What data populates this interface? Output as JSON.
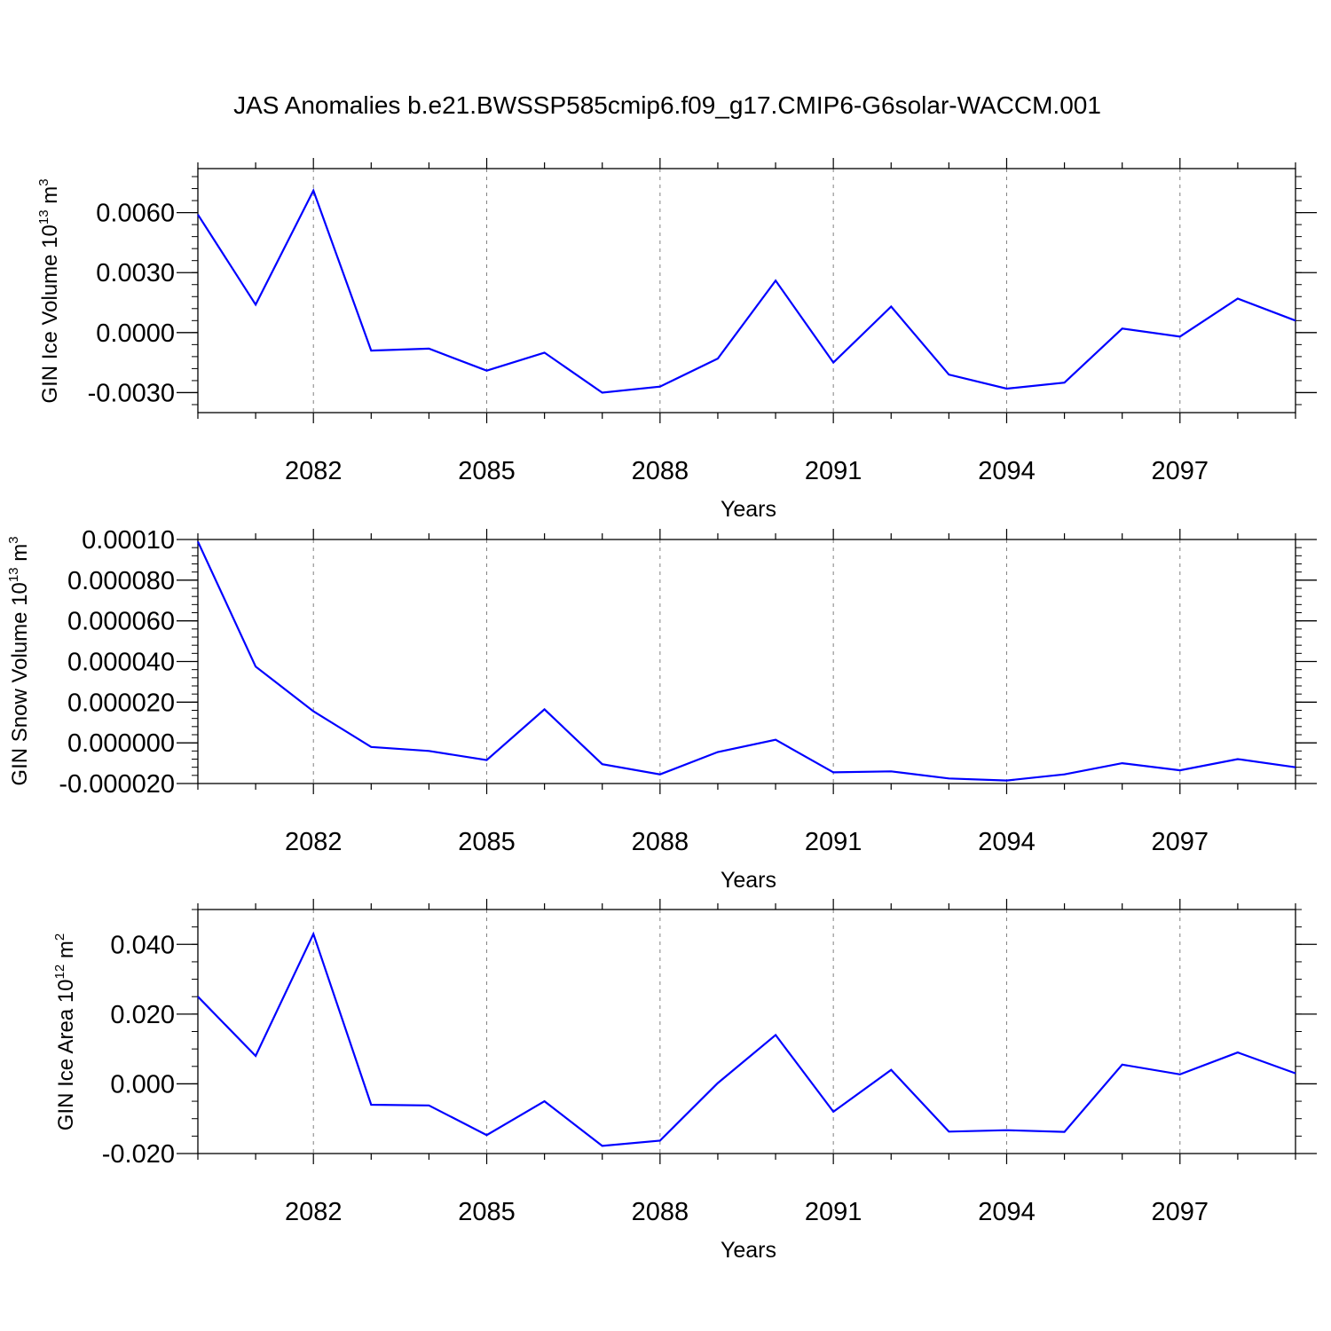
{
  "title": "JAS Anomalies b.e21.BWSSP585cmip6.f09_g17.CMIP6-G6solar-WACCM.001",
  "colors": {
    "line": "#0000ff",
    "axis": "#000000",
    "grid": "#808080"
  },
  "chart_data": [
    {
      "type": "line",
      "xlabel": "Years",
      "ylabel": {
        "text": "GIN Ice Volume 10",
        "exp": "13",
        "unit": " m",
        "unit_exp": "3"
      },
      "xlim": [
        2080,
        2099
      ],
      "ylim": [
        -0.004,
        0.0082
      ],
      "x_ticks": [
        2082,
        2085,
        2088,
        2091,
        2094,
        2097
      ],
      "x_tick_labels": [
        "2082",
        "2085",
        "2088",
        "2091",
        "2094",
        "2097"
      ],
      "y_ticks": [
        -0.003,
        0.0,
        0.003,
        0.006
      ],
      "y_tick_labels": [
        "-0.0030",
        "0.0000",
        "0.0030",
        "0.0060"
      ],
      "y_minor_step": 0.0006,
      "grid": "vertical-dashed-at-major-x",
      "x": [
        2080,
        2081,
        2082,
        2083,
        2084,
        2085,
        2086,
        2087,
        2088,
        2089,
        2090,
        2091,
        2092,
        2093,
        2094,
        2095,
        2096,
        2097,
        2098,
        2099
      ],
      "values": [
        0.0059,
        0.0014,
        0.0071,
        -0.0009,
        -0.0008,
        -0.0019,
        -0.001,
        -0.003,
        -0.0027,
        -0.0013,
        0.0026,
        -0.0015,
        0.0013,
        -0.0021,
        -0.0028,
        -0.0025,
        0.0002,
        -0.0002,
        0.0017,
        0.0006
      ]
    },
    {
      "type": "line",
      "xlabel": "Years",
      "ylabel": {
        "text": "GIN Snow Volume 10",
        "exp": "13",
        "unit": " m",
        "unit_exp": "3"
      },
      "xlim": [
        2080,
        2099
      ],
      "ylim": [
        -2e-05,
        0.0001
      ],
      "x_ticks": [
        2082,
        2085,
        2088,
        2091,
        2094,
        2097
      ],
      "x_tick_labels": [
        "2082",
        "2085",
        "2088",
        "2091",
        "2094",
        "2097"
      ],
      "y_ticks": [
        -2e-05,
        0.0,
        2e-05,
        4e-05,
        6e-05,
        8e-05,
        0.0001
      ],
      "y_tick_labels": [
        "-0.000020",
        "0.000000",
        "0.000020",
        "0.000040",
        "0.000060",
        "0.000080",
        "0.00010"
      ],
      "y_minor_step": 4e-06,
      "grid": "vertical-dashed-at-major-x",
      "x": [
        2080,
        2081,
        2082,
        2083,
        2084,
        2085,
        2086,
        2087,
        2088,
        2089,
        2090,
        2091,
        2092,
        2093,
        2094,
        2095,
        2096,
        2097,
        2098,
        2099
      ],
      "values": [
        9.9e-05,
        3.75e-05,
        1.55e-05,
        -2e-06,
        -4e-06,
        -8.5e-06,
        1.65e-05,
        -1.05e-05,
        -1.55e-05,
        -4.5e-06,
        1.5e-06,
        -1.45e-05,
        -1.4e-05,
        -1.75e-05,
        -1.85e-05,
        -1.55e-05,
        -1e-05,
        -1.35e-05,
        -8e-06,
        -1.2e-05
      ]
    },
    {
      "type": "line",
      "xlabel": "Years",
      "ylabel": {
        "text": "GIN Ice Area 10",
        "exp": "12",
        "unit": " m",
        "unit_exp": "2"
      },
      "xlim": [
        2080,
        2099
      ],
      "ylim": [
        -0.02,
        0.05
      ],
      "x_ticks": [
        2082,
        2085,
        2088,
        2091,
        2094,
        2097
      ],
      "x_tick_labels": [
        "2082",
        "2085",
        "2088",
        "2091",
        "2094",
        "2097"
      ],
      "y_ticks": [
        -0.02,
        0.0,
        0.02,
        0.04
      ],
      "y_tick_labels": [
        "-0.020",
        "0.000",
        "0.020",
        "0.040"
      ],
      "y_minor_step": 0.005,
      "grid": "vertical-dashed-at-major-x",
      "x": [
        2080,
        2081,
        2082,
        2083,
        2084,
        2085,
        2086,
        2087,
        2088,
        2089,
        2090,
        2091,
        2092,
        2093,
        2094,
        2095,
        2096,
        2097,
        2098,
        2099
      ],
      "values": [
        0.025,
        0.008,
        0.043,
        -0.006,
        -0.0062,
        -0.0147,
        -0.005,
        -0.0178,
        -0.0163,
        0.0002,
        0.014,
        -0.008,
        0.004,
        -0.0137,
        -0.0133,
        -0.0138,
        0.0055,
        0.0027,
        0.009,
        0.003
      ]
    }
  ]
}
